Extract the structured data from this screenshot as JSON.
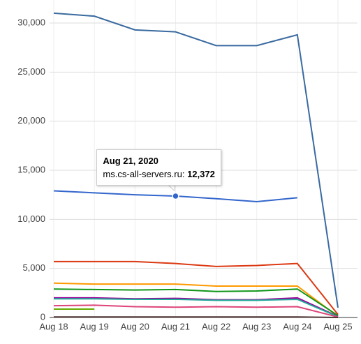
{
  "chart_data": {
    "type": "line",
    "categories": [
      "Aug 18",
      "Aug 19",
      "Aug 20",
      "Aug 21",
      "Aug 22",
      "Aug 23",
      "Aug 24",
      "Aug 25"
    ],
    "ylim": [
      0,
      30000
    ],
    "yticks": [
      0,
      {
        "value": 5000,
        "label": "5,000"
      },
      {
        "value": 10000,
        "label": "10,000"
      },
      {
        "value": 15000,
        "label": "15,000"
      },
      {
        "value": 20000,
        "label": "20,000"
      },
      {
        "value": 25000,
        "label": "25,000"
      },
      {
        "value": 30000,
        "label": "30,000"
      }
    ],
    "grid": true,
    "tooltip": {
      "title": "Aug 21, 2020"
    },
    "series": [
      {
        "color": "#3a6aa0",
        "values": [
          31000,
          30700,
          29300,
          29100,
          27700,
          27700,
          28800,
          1000
        ]
      },
      {
        "name": "ms.cs-all-servers.ru",
        "color": "#3366cc",
        "values": [
          12900,
          12700,
          12500,
          12372,
          12100,
          11800,
          12200,
          null
        ],
        "value_labels": [
          null,
          null,
          null,
          "12,372",
          null,
          null,
          null,
          null
        ]
      },
      {
        "color": "#dc3912",
        "values": [
          5700,
          5700,
          5700,
          5500,
          5200,
          5300,
          5500,
          300
        ]
      },
      {
        "color": "#ff9900",
        "values": [
          3500,
          3400,
          3400,
          3400,
          3200,
          3200,
          3200,
          100
        ]
      },
      {
        "color": "#109618",
        "values": [
          2900,
          2850,
          2800,
          2850,
          2650,
          2700,
          2900,
          200
        ]
      },
      {
        "color": "#990099",
        "values": [
          2000,
          2000,
          1900,
          1950,
          1800,
          1800,
          2000,
          100
        ]
      },
      {
        "color": "#22aa99",
        "values": [
          1900,
          1900,
          1850,
          1850,
          1750,
          1750,
          1850,
          80
        ]
      },
      {
        "color": "#dd4477",
        "values": [
          1200,
          1250,
          1100,
          1050,
          1100,
          1050,
          1100,
          50
        ]
      },
      {
        "color": "#66aa00",
        "values": [
          850,
          850,
          null,
          null,
          null,
          null,
          null,
          null
        ]
      },
      {
        "color": "#4d3333",
        "values": [
          50,
          50,
          50,
          50,
          50,
          50,
          50,
          0
        ]
      }
    ]
  }
}
